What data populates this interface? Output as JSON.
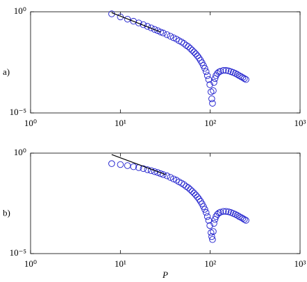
{
  "chart_data": [
    {
      "type": "scatter",
      "label": "a)",
      "xscale": "log",
      "yscale": "log",
      "xlim": [
        1,
        1000
      ],
      "ylim": [
        1e-05,
        1
      ],
      "xticks": [
        {
          "value": 1,
          "label": "10⁰"
        },
        {
          "value": 10,
          "label": "10¹"
        },
        {
          "value": 100,
          "label": "10²"
        },
        {
          "value": 1000,
          "label": "10³"
        }
      ],
      "yticks": [
        {
          "value": 1e-05,
          "label": "10⁻⁵"
        },
        {
          "value": 1,
          "label": "10⁰"
        }
      ],
      "color": "#1a1acc",
      "x": [
        8,
        10,
        12,
        14,
        16,
        18,
        20,
        22,
        24,
        26,
        28,
        30,
        33,
        36,
        39,
        42,
        45,
        48,
        51,
        54,
        57,
        60,
        63,
        66,
        69,
        72,
        75,
        78,
        81,
        84,
        87,
        90,
        93,
        96,
        99,
        102,
        104,
        106,
        108,
        110,
        113,
        116,
        120,
        125,
        130,
        140,
        150,
        160,
        170,
        180,
        190,
        200,
        210,
        220,
        230,
        240,
        250
      ],
      "values": [
        0.79,
        0.56,
        0.43,
        0.34,
        0.28,
        0.23,
        0.19,
        0.16,
        0.135,
        0.117,
        0.1,
        0.089,
        0.074,
        0.062,
        0.052,
        0.045,
        0.037,
        0.032,
        0.027,
        0.022,
        0.019,
        0.0155,
        0.0126,
        0.0102,
        0.0083,
        0.0066,
        0.0052,
        0.004,
        0.003,
        0.0022,
        0.0016,
        0.0011,
        0.0007,
        0.00045,
        0.00025,
        0.00011,
        5e-05,
        3e-05,
        0.000126,
        0.00032,
        0.0005,
        0.0007,
        0.0009,
        0.00105,
        0.00115,
        0.00126,
        0.00126,
        0.0012,
        0.0011,
        0.001,
        0.0009,
        0.0008,
        0.0007,
        0.00063,
        0.00056,
        0.0005,
        0.00045
      ],
      "fit": {
        "x": [
          8,
          28
        ],
        "values": [
          0.9,
          0.1
        ],
        "color": "#000000"
      }
    },
    {
      "type": "scatter",
      "label": "b)",
      "xlabel": "P",
      "xscale": "log",
      "yscale": "log",
      "xlim": [
        1,
        1000
      ],
      "ylim": [
        1e-05,
        1
      ],
      "xticks": [
        {
          "value": 1,
          "label": "10⁰"
        },
        {
          "value": 10,
          "label": "10¹"
        },
        {
          "value": 100,
          "label": "10²"
        },
        {
          "value": 1000,
          "label": "10³"
        }
      ],
      "yticks": [
        {
          "value": 1e-05,
          "label": "10⁻⁵"
        },
        {
          "value": 1,
          "label": "10⁰"
        }
      ],
      "color": "#1a1acc",
      "x": [
        8,
        10,
        12,
        14,
        16,
        18,
        20,
        22,
        24,
        26,
        28,
        30,
        33,
        36,
        39,
        42,
        45,
        48,
        51,
        54,
        57,
        60,
        63,
        66,
        69,
        72,
        75,
        78,
        81,
        84,
        87,
        90,
        93,
        96,
        99,
        102,
        104,
        106,
        108,
        110,
        113,
        116,
        120,
        125,
        130,
        140,
        150,
        160,
        170,
        180,
        190,
        200,
        210,
        220,
        230,
        240,
        250
      ],
      "values": [
        0.3,
        0.27,
        0.24,
        0.21,
        0.19,
        0.17,
        0.15,
        0.135,
        0.12,
        0.108,
        0.095,
        0.085,
        0.074,
        0.062,
        0.052,
        0.045,
        0.037,
        0.032,
        0.027,
        0.022,
        0.019,
        0.0155,
        0.0126,
        0.0102,
        0.0083,
        0.0066,
        0.0052,
        0.004,
        0.003,
        0.0022,
        0.0016,
        0.0011,
        0.0007,
        0.00045,
        0.00025,
        0.00011,
        7e-05,
        5e-05,
        0.000126,
        0.00032,
        0.0005,
        0.0007,
        0.0009,
        0.00105,
        0.00115,
        0.00126,
        0.00126,
        0.0012,
        0.0011,
        0.001,
        0.0009,
        0.0008,
        0.0007,
        0.00063,
        0.00056,
        0.0005,
        0.00045
      ],
      "fit": {
        "x": [
          8,
          32
        ],
        "values": [
          0.85,
          0.085
        ],
        "color": "#000000"
      }
    }
  ]
}
